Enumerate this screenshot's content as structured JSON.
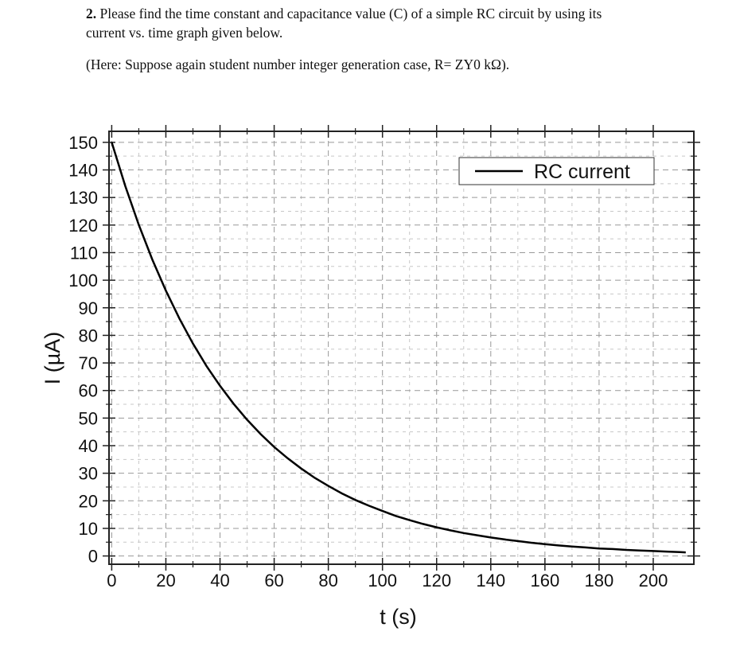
{
  "question": {
    "number": "2.",
    "lines": [
      "Please find the time constant and capacitance value (C) of a simple RC circuit by using its",
      "current vs. time graph given below."
    ],
    "note": "(Here: Suppose again student number integer generation case, R= ZY0 kΩ)."
  },
  "chart_data": {
    "type": "line",
    "xlabel": "t (s)",
    "ylabel": "I (µA)",
    "x": [
      0,
      5,
      10,
      15,
      20,
      25,
      30,
      35,
      40,
      45,
      50,
      55,
      60,
      65,
      70,
      75,
      80,
      85,
      90,
      95,
      100,
      105,
      110,
      115,
      120,
      125,
      130,
      135,
      140,
      145,
      150,
      155,
      160,
      165,
      170,
      175,
      180,
      185,
      190,
      195,
      200,
      205,
      210,
      212
    ],
    "series": [
      {
        "name": "RC current",
        "color": "#000000",
        "values": [
          150,
          134.2,
          120.1,
          107.5,
          96.2,
          86.1,
          77.0,
          68.9,
          61.7,
          55.2,
          49.4,
          44.2,
          39.5,
          35.4,
          31.7,
          28.3,
          25.4,
          22.7,
          20.3,
          18.2,
          16.3,
          14.5,
          13.0,
          11.6,
          10.4,
          9.3,
          8.3,
          7.5,
          6.7,
          6.0,
          5.4,
          4.8,
          4.3,
          3.8,
          3.4,
          3.1,
          2.7,
          2.5,
          2.2,
          2.0,
          1.8,
          1.6,
          1.4,
          1.3
        ]
      }
    ],
    "xlim": [
      -1,
      215
    ],
    "ylim": [
      -3,
      154
    ],
    "xticks": [
      0,
      20,
      40,
      60,
      80,
      100,
      120,
      140,
      160,
      180,
      200
    ],
    "yticks": [
      0,
      10,
      20,
      30,
      40,
      50,
      60,
      70,
      80,
      90,
      100,
      110,
      120,
      130,
      140,
      150
    ],
    "grid": true,
    "minor_grid": true,
    "legend": "upper right"
  }
}
